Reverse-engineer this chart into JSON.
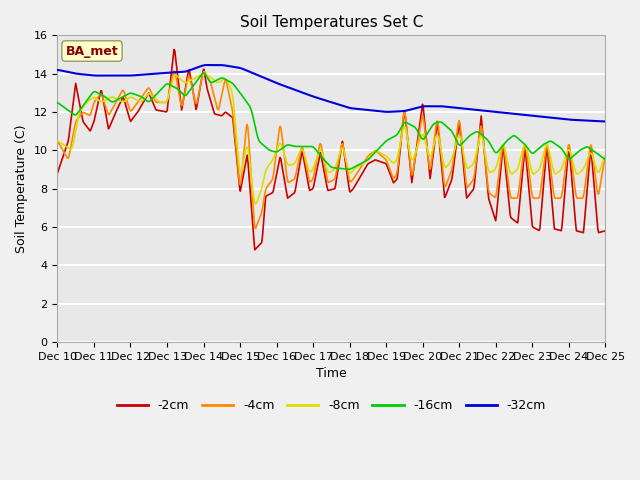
{
  "title": "Soil Temperatures Set C",
  "xlabel": "Time",
  "ylabel": "Soil Temperature (C)",
  "ylim": [
    0,
    16
  ],
  "yticks": [
    0,
    2,
    4,
    6,
    8,
    10,
    12,
    14,
    16
  ],
  "x_labels": [
    "Dec 10",
    "Dec 11",
    "Dec 12",
    "Dec 13",
    "Dec 14",
    "Dec 15",
    "Dec 16",
    "Dec 17",
    "Dec 18",
    "Dec 19",
    "Dec 20",
    "Dec 21",
    "Dec 22",
    "Dec 23",
    "Dec 24",
    "Dec 25"
  ],
  "colors": {
    "-2cm": "#cc0000",
    "-4cm": "#ff8800",
    "-8cm": "#dddd00",
    "-16cm": "#00cc00",
    "-32cm": "#0000dd"
  },
  "annotation_text": "BA_met",
  "annotation_color": "#880000",
  "annotation_bg": "#ffffcc",
  "fig_bg": "#f0f0f0",
  "plot_bg": "#e8e8e8",
  "grid_color": "#ffffff",
  "title_fontsize": 11,
  "axis_label_fontsize": 9,
  "tick_fontsize": 8,
  "legend_fontsize": 9
}
